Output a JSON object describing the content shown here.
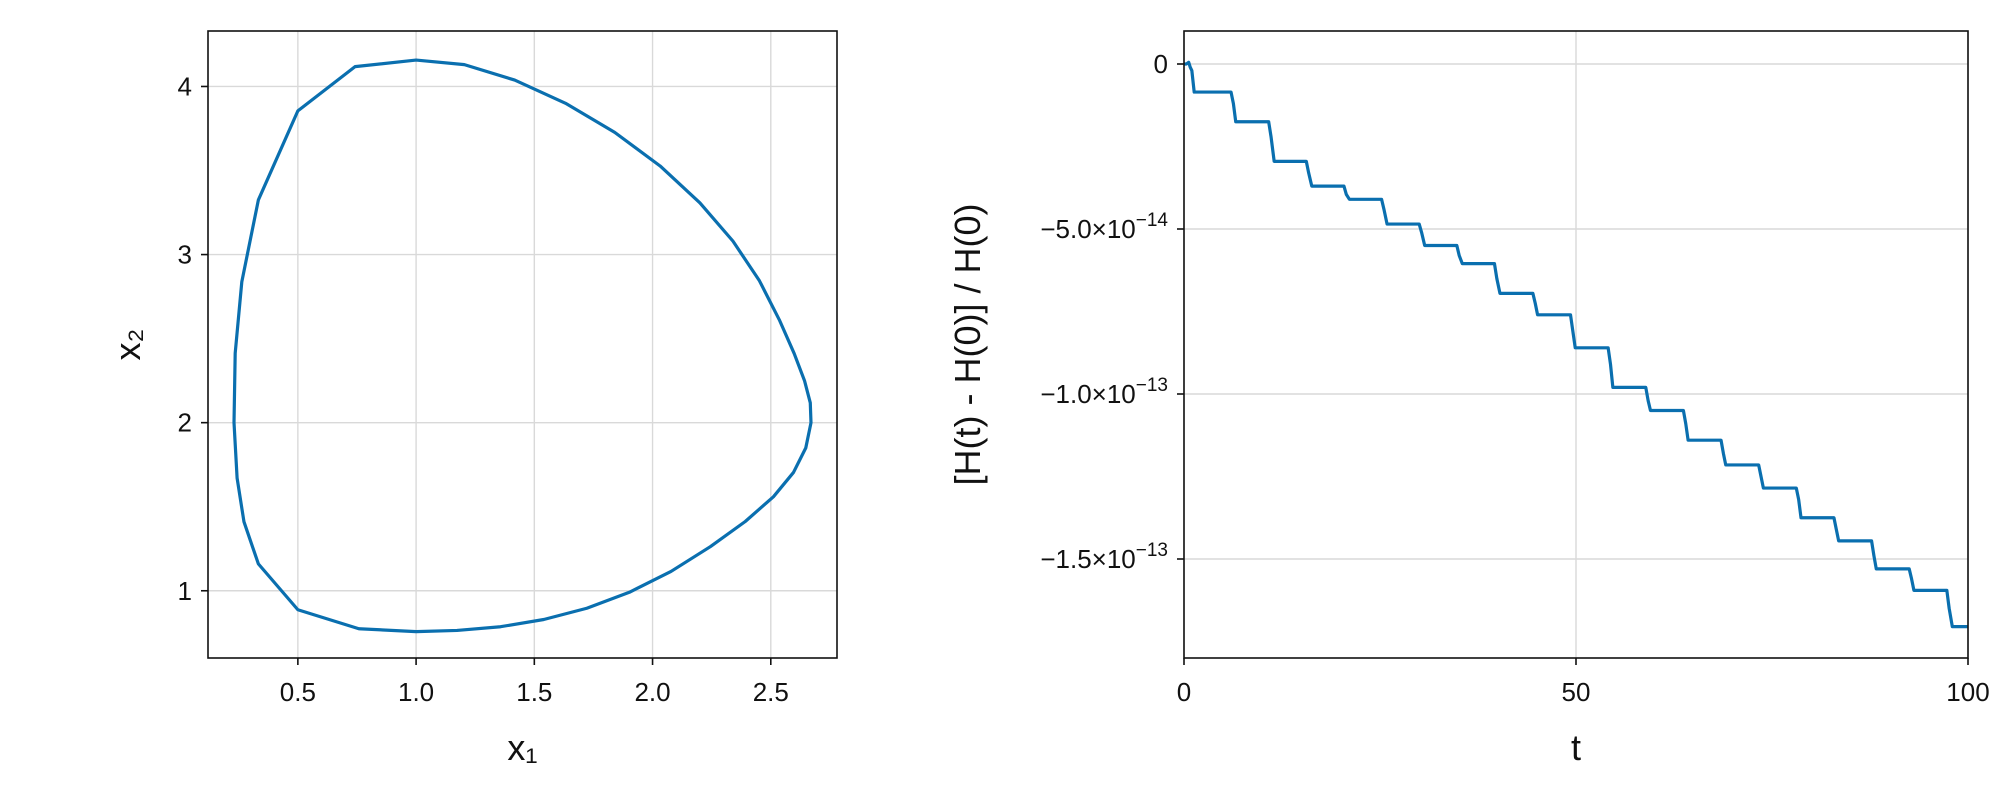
{
  "colors": {
    "series": "#0a6faf",
    "grid": "#d9d9d9",
    "frame": "#111111"
  },
  "chart_data": [
    {
      "type": "line",
      "id": "phase",
      "title": "",
      "xlabel": "x₁",
      "ylabel": "x₂",
      "xlim": [
        0.12,
        2.78
      ],
      "ylim": [
        0.6,
        4.33
      ],
      "xticks": [
        0.5,
        1.0,
        1.5,
        2.0,
        2.5
      ],
      "xtick_labels": [
        "0.5",
        "1.0",
        "1.5",
        "2.0",
        "2.5"
      ],
      "yticks": [
        1,
        2,
        3,
        4
      ],
      "ytick_labels": [
        "1",
        "2",
        "3",
        "4"
      ],
      "grid": true,
      "legend": "none",
      "series": [
        {
          "x": [
            1.0,
            1.204,
            1.417,
            1.632,
            1.84,
            2.032,
            2.2,
            2.34,
            2.452,
            2.536,
            2.599,
            2.643,
            2.667,
            2.67,
            2.648,
            2.596,
            2.511,
            2.392,
            2.245,
            2.078,
            1.902,
            1.722,
            1.54,
            1.357,
            1.173,
            1.0,
            0.758,
            0.5,
            0.333,
            0.272,
            0.243,
            0.23,
            0.235,
            0.263,
            0.333,
            0.5,
            0.742,
            1.0
          ],
          "y": [
            4.157,
            4.13,
            4.038,
            3.9,
            3.727,
            3.527,
            3.308,
            3.08,
            2.844,
            2.612,
            2.411,
            2.248,
            2.118,
            2.0,
            1.85,
            1.704,
            1.559,
            1.412,
            1.263,
            1.115,
            0.991,
            0.896,
            0.829,
            0.786,
            0.764,
            0.757,
            0.774,
            0.887,
            1.16,
            1.411,
            1.671,
            2.0,
            2.413,
            2.838,
            3.325,
            3.855,
            4.118,
            4.157
          ]
        }
      ]
    },
    {
      "type": "line",
      "id": "energy",
      "title": "",
      "xlabel": "t",
      "ylabel": "[H(t) - H(0)] / H(0)",
      "xlim": [
        0,
        100
      ],
      "ylim": [
        -1.8e-13,
        1e-14
      ],
      "xticks": [
        0,
        50,
        100
      ],
      "xtick_labels": [
        "0",
        "50",
        "100"
      ],
      "yticks": [
        0,
        -5e-14,
        -1e-13,
        -1.5e-13
      ],
      "ytick_labels": [
        {
          "mantissa": "0",
          "exponent": ""
        },
        {
          "mantissa": "−5.0×10",
          "exponent": "−14"
        },
        {
          "mantissa": "−1.0×10",
          "exponent": "−13"
        },
        {
          "mantissa": "−1.5×10",
          "exponent": "−13"
        }
      ],
      "grid": true,
      "legend": "none",
      "series": [
        {
          "x": [
            0,
            0.3,
            0.6,
            0.8,
            1.0,
            1.3,
            6.0,
            6.3,
            6.6,
            10.8,
            11.1,
            11.5,
            15.6,
            15.9,
            16.3,
            20.4,
            20.7,
            21.1,
            25.2,
            25.5,
            25.9,
            30.0,
            30.3,
            30.7,
            34.8,
            35.1,
            35.5,
            39.6,
            39.9,
            40.3,
            44.5,
            44.8,
            45.1,
            49.3,
            49.6,
            49.9,
            54.1,
            54.4,
            54.7,
            58.9,
            59.2,
            59.5,
            63.7,
            64.0,
            64.3,
            68.5,
            68.8,
            69.1,
            73.3,
            73.6,
            73.9,
            78.1,
            78.4,
            78.7,
            82.9,
            83.2,
            83.5,
            87.7,
            88.0,
            88.3,
            92.5,
            92.8,
            93.1,
            97.3,
            97.6,
            98.0,
            99.2,
            100
          ],
          "y": [
            0,
            0,
            5e-16,
            -1e-15,
            -2e-15,
            -8.5e-15,
            -8.5e-15,
            -1.2e-14,
            -1.75e-14,
            -1.75e-14,
            -2.2e-14,
            -2.95e-14,
            -2.95e-14,
            -3.3e-14,
            -3.7e-14,
            -3.7e-14,
            -3.95e-14,
            -4.1e-14,
            -4.1e-14,
            -4.4e-14,
            -4.85e-14,
            -4.85e-14,
            -5.1e-14,
            -5.5e-14,
            -5.5e-14,
            -5.8e-14,
            -6.05e-14,
            -6.05e-14,
            -6.5e-14,
            -6.95e-14,
            -6.95e-14,
            -7.25e-14,
            -7.6e-14,
            -7.6e-14,
            -8.1e-14,
            -8.6e-14,
            -8.6e-14,
            -9.1e-14,
            -9.8e-14,
            -9.8e-14,
            -1.02e-13,
            -1.05e-13,
            -1.05e-13,
            -1.09e-13,
            -1.14e-13,
            -1.14e-13,
            -1.18e-13,
            -1.215e-13,
            -1.215e-13,
            -1.25e-13,
            -1.285e-13,
            -1.285e-13,
            -1.32e-13,
            -1.375e-13,
            -1.375e-13,
            -1.41e-13,
            -1.445e-13,
            -1.445e-13,
            -1.49e-13,
            -1.53e-13,
            -1.53e-13,
            -1.56e-13,
            -1.595e-13,
            -1.595e-13,
            -1.65e-13,
            -1.705e-13,
            -1.705e-13,
            -1.705e-13
          ]
        }
      ]
    }
  ]
}
